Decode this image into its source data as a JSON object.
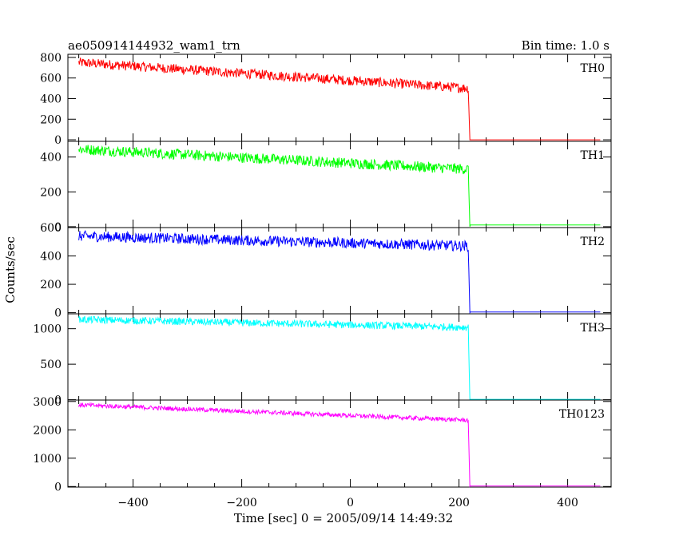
{
  "header": {
    "title": "ae050914144932_wam1_trn",
    "bin_time": "Bin time: 1.0 s"
  },
  "chart_data": {
    "type": "line",
    "title": "ae050914144932_wam1_trn",
    "xlabel": "Time [sec] 0 = 2005/09/14 14:49:32",
    "ylabel": "Counts/sec",
    "xlim": [
      -520,
      480
    ],
    "x_ticks": [
      -400,
      -200,
      0,
      200,
      400
    ],
    "x_tick_labels": [
      "−400",
      "−200",
      "0",
      "200",
      "400"
    ],
    "data_range": [
      -500,
      460
    ],
    "cutoff_time": 218,
    "grid": false,
    "panels": [
      {
        "name": "TH0",
        "color": "#ff0000",
        "ylim": [
          -15,
          830
        ],
        "yticks": [
          0,
          200,
          400,
          600,
          800
        ],
        "start_level": 750,
        "end_level": 500,
        "noise": 28,
        "post_level": 0
      },
      {
        "name": "TH1",
        "color": "#00ff00",
        "ylim": [
          -5,
          490
        ],
        "yticks": [
          0,
          200,
          400
        ],
        "start_level": 445,
        "end_level": 330,
        "noise": 18,
        "post_level": 10
      },
      {
        "name": "TH2",
        "color": "#0000ff",
        "ylim": [
          -8,
          600
        ],
        "yticks": [
          0,
          200,
          400,
          600
        ],
        "start_level": 540,
        "end_level": 470,
        "noise": 22,
        "post_level": 5
      },
      {
        "name": "TH3",
        "color": "#00ffff",
        "ylim": [
          -5,
          1210
        ],
        "yticks": [
          0,
          500,
          1000
        ],
        "start_level": 1130,
        "end_level": 1020,
        "noise": 30,
        "post_level": 5
      },
      {
        "name": "TH0123",
        "color": "#ff00ff",
        "ylim": [
          -20,
          3050
        ],
        "yticks": [
          0,
          1000,
          2000,
          3000
        ],
        "start_level": 2880,
        "end_level": 2340,
        "noise": 45,
        "post_level": 20
      }
    ]
  }
}
